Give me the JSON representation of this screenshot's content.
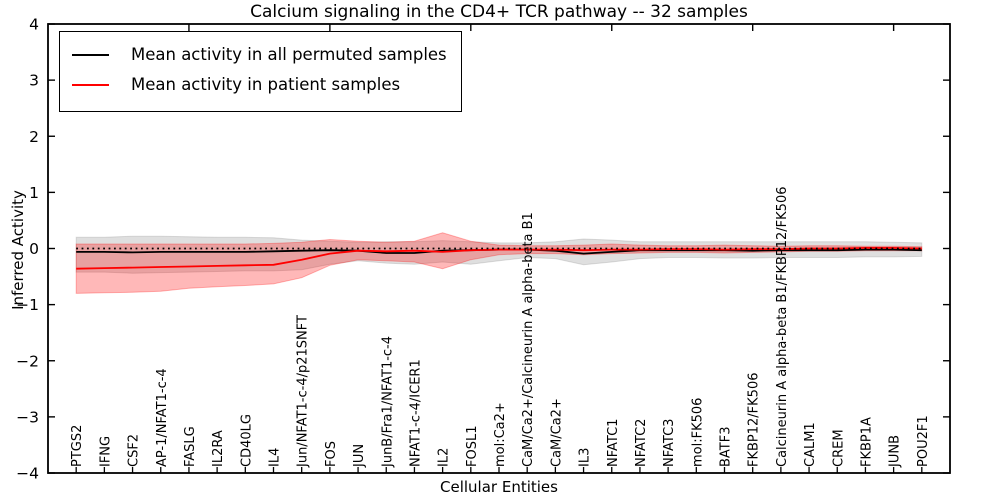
{
  "title": "Calcium signaling in the CD4+ TCR pathway -- 32 samples",
  "axes": {
    "xlabel": "Cellular Entities",
    "ylabel": "Inferred Activity",
    "ylim": [
      -4,
      4
    ],
    "xlim": [
      0,
      32
    ],
    "ytick_values": [
      4,
      3,
      2,
      1,
      0,
      -1,
      -2,
      -3,
      -4
    ],
    "ytick_labels": [
      "4",
      "3",
      "2",
      "1",
      "0",
      "−1",
      "−2",
      "−3",
      "−4"
    ],
    "top_xtick_positions": [
      5,
      10,
      15,
      20,
      25,
      30
    ],
    "grid": false
  },
  "legend": {
    "position": "upper-left",
    "entries": [
      {
        "label": "Mean activity in all permuted samples",
        "color": "#000000"
      },
      {
        "label": "Mean activity in patient samples",
        "color": "#ff0000"
      }
    ]
  },
  "colors": {
    "permuted_line": "#000000",
    "patient_line": "#ff0000",
    "permuted_band": "rgba(128,128,128,0.25)",
    "patient_band": "rgba(255,0,0,0.28)",
    "zero_line": "#000000",
    "frame": "#000000",
    "background": "#ffffff"
  },
  "chart_data": {
    "type": "line",
    "title": "Calcium signaling in the CD4+ TCR pathway -- 32 samples",
    "xlabel": "Cellular Entities",
    "ylabel": "Inferred Activity",
    "ylim": [
      -4,
      4
    ],
    "zero_reference_line": 0,
    "legend_position": "upper-left",
    "categories": [
      "PTGS2",
      "IFNG",
      "CSF2",
      "AP-1/NFAT1-c-4",
      "FASLG",
      "IL2RA",
      "CD40LG",
      "IL4",
      "Jun/NFAT1-c-4/p21SNFT",
      "FOS",
      "JUN",
      "JunB/Fra1/NFAT1-c-4",
      "NFAT1-c-4/ICER1",
      "IL2",
      "FOSL1",
      "mol:Ca2+",
      "CaM/Ca2+/Calcineurin A alpha-beta B1",
      "CaM/Ca2+",
      "IL3",
      "NFATC1",
      "NFATC2",
      "NFATC3",
      "mol:FK506",
      "BATF3",
      "FKBP12/FK506",
      "Calcineurin A alpha-beta B1/FKBP12/FK506",
      "CALM1",
      "CREM",
      "FKBP1A",
      "JUNB",
      "POU2F1"
    ],
    "series": [
      {
        "name": "Mean activity in all permuted samples",
        "color": "#000000",
        "values": [
          -0.06,
          -0.06,
          -0.07,
          -0.06,
          -0.06,
          -0.06,
          -0.06,
          -0.05,
          -0.04,
          -0.03,
          -0.04,
          -0.08,
          -0.08,
          -0.04,
          -0.03,
          -0.02,
          -0.02,
          -0.04,
          -0.09,
          -0.06,
          -0.03,
          -0.03,
          -0.03,
          -0.03,
          -0.04,
          -0.03,
          -0.03,
          -0.03,
          -0.02,
          -0.02,
          -0.03
        ]
      },
      {
        "name": "Mean activity in patient samples",
        "color": "#ff0000",
        "values": [
          -0.36,
          -0.35,
          -0.34,
          -0.33,
          -0.32,
          -0.31,
          -0.3,
          -0.29,
          -0.2,
          -0.09,
          -0.04,
          -0.05,
          -0.04,
          -0.06,
          -0.03,
          -0.02,
          -0.02,
          -0.02,
          -0.03,
          -0.02,
          -0.02,
          -0.01,
          -0.01,
          -0.02,
          -0.01,
          -0.01,
          0.0,
          0.0,
          0.01,
          0.01,
          0.0
        ]
      }
    ],
    "bands": [
      {
        "name": "permuted-samples-range",
        "color": "rgba(128,128,128,0.25)",
        "upper": [
          0.2,
          0.2,
          0.22,
          0.22,
          0.21,
          0.2,
          0.2,
          0.19,
          0.15,
          0.13,
          0.11,
          0.12,
          0.12,
          0.14,
          0.12,
          0.1,
          0.1,
          0.12,
          0.17,
          0.15,
          0.12,
          0.12,
          0.12,
          0.12,
          0.12,
          0.12,
          0.12,
          0.12,
          0.12,
          0.11,
          0.1
        ],
        "lower": [
          -0.42,
          -0.42,
          -0.44,
          -0.43,
          -0.42,
          -0.41,
          -0.4,
          -0.4,
          -0.38,
          -0.28,
          -0.22,
          -0.26,
          -0.28,
          -0.24,
          -0.28,
          -0.22,
          -0.16,
          -0.18,
          -0.29,
          -0.24,
          -0.18,
          -0.16,
          -0.16,
          -0.17,
          -0.17,
          -0.16,
          -0.16,
          -0.16,
          -0.15,
          -0.15,
          -0.14
        ]
      },
      {
        "name": "patient-samples-range",
        "color": "rgba(255,0,0,0.28)",
        "upper": [
          0.08,
          0.08,
          0.08,
          0.08,
          0.08,
          0.08,
          0.08,
          0.09,
          0.11,
          0.16,
          0.13,
          0.11,
          0.13,
          0.28,
          0.13,
          0.06,
          0.05,
          0.05,
          0.06,
          0.08,
          0.06,
          0.05,
          0.05,
          0.06,
          0.05,
          0.04,
          0.05,
          0.05,
          0.04,
          0.04,
          0.03
        ],
        "lower": [
          -0.8,
          -0.79,
          -0.78,
          -0.76,
          -0.71,
          -0.68,
          -0.66,
          -0.63,
          -0.52,
          -0.3,
          -0.2,
          -0.22,
          -0.24,
          -0.36,
          -0.2,
          -0.11,
          -0.09,
          -0.09,
          -0.11,
          -0.09,
          -0.08,
          -0.07,
          -0.07,
          -0.08,
          -0.07,
          -0.06,
          -0.05,
          -0.05,
          -0.04,
          -0.04,
          -0.04
        ]
      }
    ]
  }
}
